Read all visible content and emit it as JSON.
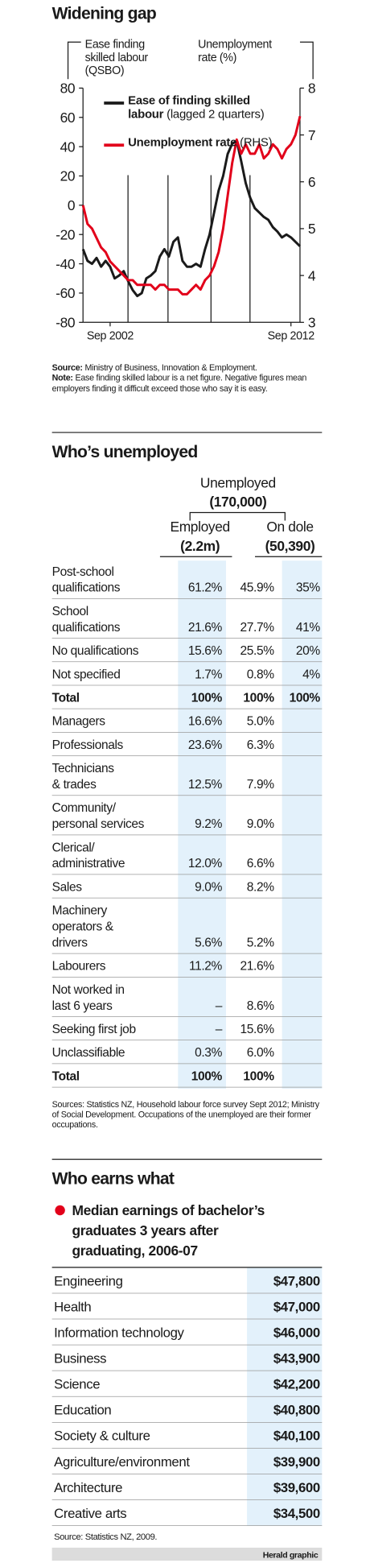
{
  "chart_data": {
    "type": "line",
    "title": "Widening gap",
    "y_label": [
      "Ease finding",
      "skilled labour",
      "(QSBO)"
    ],
    "y2_label": [
      "Unemployment",
      "rate (%)"
    ],
    "categories": [
      null,
      null,
      null,
      null,
      null,
      null,
      "Sep 2002",
      null,
      null,
      null,
      null,
      null,
      null,
      null,
      null,
      null,
      null,
      null,
      null,
      null,
      null,
      null,
      null,
      null,
      null,
      null,
      null,
      null,
      null,
      null,
      null,
      null,
      null,
      null,
      null,
      null,
      null,
      null,
      null,
      null,
      null,
      null,
      null,
      null,
      null,
      null,
      "Sep 2012",
      null,
      null
    ],
    "series": [
      {
        "name": "Ease of finding skilled labour",
        "name_note": "(lagged 2 quarters)",
        "color": "#1a1a1a",
        "axis": "y",
        "values": [
          -30,
          -38,
          -40,
          -36,
          -42,
          -38,
          -42,
          -50,
          -48,
          -45,
          -52,
          -58,
          -62,
          -60,
          -50,
          -48,
          -45,
          -35,
          -30,
          -35,
          -25,
          -22,
          -38,
          -42,
          -42,
          -40,
          -42,
          -30,
          -20,
          -5,
          10,
          20,
          35,
          42,
          44,
          30,
          15,
          5,
          -2,
          -5,
          -8,
          -10,
          -15,
          -18,
          -22,
          -20,
          -22,
          -25,
          -28
        ]
      },
      {
        "name": "Unemployment rate",
        "name_note": "(RHS)",
        "color": "#e2001a",
        "axis": "y2",
        "values": [
          5.5,
          5.1,
          5.0,
          4.8,
          4.6,
          4.5,
          4.3,
          4.2,
          4.1,
          4.0,
          3.9,
          3.9,
          3.8,
          3.8,
          3.8,
          3.8,
          3.7,
          3.8,
          3.8,
          3.7,
          3.7,
          3.7,
          3.6,
          3.6,
          3.7,
          3.8,
          3.7,
          3.9,
          4.0,
          4.2,
          4.5,
          5.0,
          5.7,
          6.4,
          6.9,
          6.6,
          6.8,
          6.6,
          6.6,
          6.8,
          6.5,
          6.6,
          6.8,
          6.7,
          6.5,
          6.7,
          6.8,
          7.0,
          7.4
        ]
      }
    ],
    "ylim": [
      -80,
      80
    ],
    "yticks": [
      -80,
      -60,
      -40,
      -20,
      0,
      20,
      40,
      60,
      80
    ],
    "y2lim": [
      3,
      8
    ],
    "y2ticks": [
      3,
      4,
      5,
      6,
      7,
      8
    ],
    "grid": false,
    "source": {
      "label": "Source:",
      "text": "Ministry of Business, Innovation & Employment."
    },
    "note": {
      "label": "Note:",
      "text": "Ease finding skilled labour is a net figure. Negative figures mean employers finding it difficult exceed those who say it is easy."
    }
  },
  "unemployed": {
    "title": "Who’s unemployed",
    "header": {
      "group": [
        "Unemployed",
        "(170,000)"
      ],
      "columns": [
        [
          "Employed",
          "(2.2m)"
        ],
        [
          "On dole",
          "(50,390)"
        ]
      ]
    },
    "rows": [
      {
        "label": [
          "Post-school",
          "qualifications"
        ],
        "cells": [
          "61.2%",
          "45.9%",
          "35%"
        ]
      },
      {
        "label": [
          "School",
          "qualifications"
        ],
        "cells": [
          "21.6%",
          "27.7%",
          "41%"
        ]
      },
      {
        "label": [
          "No qualifications"
        ],
        "cells": [
          "15.6%",
          "25.5%",
          "20%"
        ]
      },
      {
        "label": [
          "Not specified"
        ],
        "cells": [
          "1.7%",
          "0.8%",
          "4%"
        ]
      },
      {
        "label": [
          "Total"
        ],
        "cells": [
          "100%",
          "100%",
          "100%"
        ],
        "bold": true
      },
      {
        "label": [
          "Managers"
        ],
        "cells": [
          "16.6%",
          "5.0%"
        ]
      },
      {
        "label": [
          "Professionals"
        ],
        "cells": [
          "23.6%",
          "6.3%"
        ]
      },
      {
        "label": [
          "Technicians",
          "& trades"
        ],
        "cells": [
          "12.5%",
          "7.9%"
        ]
      },
      {
        "label": [
          "Community/",
          "personal services"
        ],
        "cells": [
          "9.2%",
          "9.0%"
        ]
      },
      {
        "label": [
          "Clerical/",
          "administrative"
        ],
        "cells": [
          "12.0%",
          "6.6%"
        ]
      },
      {
        "label": [
          "Sales"
        ],
        "cells": [
          "9.0%",
          "8.2%"
        ]
      },
      {
        "label": [
          "Machinery",
          "operators &",
          "drivers"
        ],
        "cells": [
          "5.6%",
          "5.2%"
        ]
      },
      {
        "label": [
          "Labourers"
        ],
        "cells": [
          "11.2%",
          "21.6%"
        ]
      },
      {
        "label": [
          "Not worked in",
          "last 6 years"
        ],
        "cells": [
          "–",
          "8.6%"
        ]
      },
      {
        "label": [
          "Seeking first job"
        ],
        "cells": [
          "–",
          "15.6%"
        ]
      },
      {
        "label": [
          "Unclassifiable"
        ],
        "cells": [
          "0.3%",
          "6.0%"
        ]
      },
      {
        "label": [
          "Total"
        ],
        "cells": [
          "100%",
          "100%"
        ],
        "bold": true
      }
    ],
    "sources": "Sources: Statistics NZ, Household labour force survey Sept 2012; Ministry of Social Development. Occupations of the unemployed are their former occupations."
  },
  "earnings": {
    "title": "Who earns what",
    "heading": [
      "Median earnings of bachelor’s",
      "graduates 3 years after",
      "graduating, 2006-07"
    ],
    "rows": [
      [
        "Engineering",
        "$47,800"
      ],
      [
        "Health",
        "$47,000"
      ],
      [
        "Information technology",
        "$46,000"
      ],
      [
        "Business",
        "$43,900"
      ],
      [
        "Science",
        "$42,200"
      ],
      [
        "Education",
        "$40,800"
      ],
      [
        "Society & culture",
        "$40,100"
      ],
      [
        "Agriculture/environment",
        "$39,900"
      ],
      [
        "Architecture",
        "$39,600"
      ],
      [
        "Creative arts",
        "$34,500"
      ]
    ],
    "source": "Source: Statistics NZ, 2009.",
    "footer": "Herald graphic"
  }
}
